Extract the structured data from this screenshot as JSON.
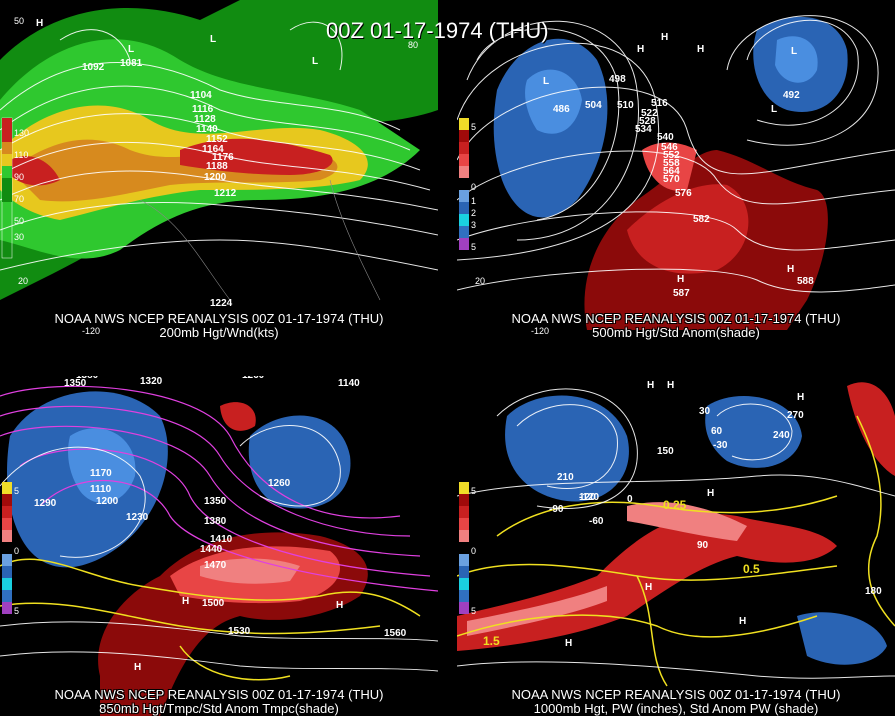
{
  "title": "00Z 01-17-1974 (THU)",
  "panels": [
    {
      "caption_line1": "NOAA NWS NCEP REANALYSIS 00Z 01-17-1974 (THU)",
      "caption_line2": "200mb Hgt/Wnd(kts)",
      "legend": [
        "130",
        "110",
        "90",
        "70",
        "50",
        "30"
      ],
      "ticks": [
        "50",
        "-120",
        "20",
        "80"
      ],
      "labels": [
        "H",
        "L",
        "L",
        "L",
        "1092",
        "1081",
        "1104",
        "1116",
        "1128",
        "1140",
        "1152",
        "1164",
        "1176",
        "1188",
        "1200",
        "1212",
        "1224"
      ]
    },
    {
      "caption_line1": "NOAA NWS NCEP REANALYSIS 00Z 01-17-1974 (THU)",
      "caption_line2": "500mb Hgt/Std Anom(shade)",
      "legend": [
        "5",
        "4",
        "3",
        "2",
        "1",
        "0",
        "1",
        "2",
        "3",
        "4",
        "5"
      ],
      "ticks": [
        "-120",
        "20"
      ],
      "labels": [
        "H",
        "H",
        "H",
        "L",
        "L",
        "L",
        "H",
        "H",
        "498",
        "504",
        "510",
        "516",
        "522",
        "528",
        "534",
        "540",
        "546",
        "552",
        "558",
        "564",
        "570",
        "576",
        "582",
        "587",
        "588",
        "492",
        "486"
      ]
    },
    {
      "caption_line1": "NOAA NWS NCEP REANALYSIS 00Z 01-17-1974 (THU)",
      "caption_line2": "850mb Hgt/Tmpc/Std Anom Tmpc(shade)",
      "legend": [
        "5",
        "4",
        "3",
        "2",
        "1",
        "0",
        "1",
        "2",
        "3",
        "4",
        "5"
      ],
      "ticks": [],
      "labels": [
        "1380",
        "1350",
        "1320",
        "1260",
        "1290",
        "1230",
        "1200",
        "1350",
        "1380",
        "1410",
        "1440",
        "1470",
        "1500",
        "1530",
        "1560",
        "1260",
        "1170",
        "1140",
        "1110",
        "H",
        "H",
        "H"
      ]
    },
    {
      "caption_line1": "NOAA NWS NCEP REANALYSIS 00Z 01-17-1974 (THU)",
      "caption_line2": "1000mb Hgt, PW (inches), Std Anom PW (shade)",
      "legend": [
        "5",
        "4",
        "3",
        "2",
        "1",
        "0",
        "1",
        "2",
        "3",
        "4",
        "5"
      ],
      "ticks": [],
      "labels": [
        "H",
        "H",
        "H",
        "H",
        "H",
        "H",
        "H",
        "150",
        "120",
        "90",
        "60",
        "30",
        "0",
        "-30",
        "-60",
        "-90",
        "-120",
        "180",
        "210",
        "240",
        "270",
        "0.25",
        "0.5",
        "1.5"
      ]
    }
  ]
}
